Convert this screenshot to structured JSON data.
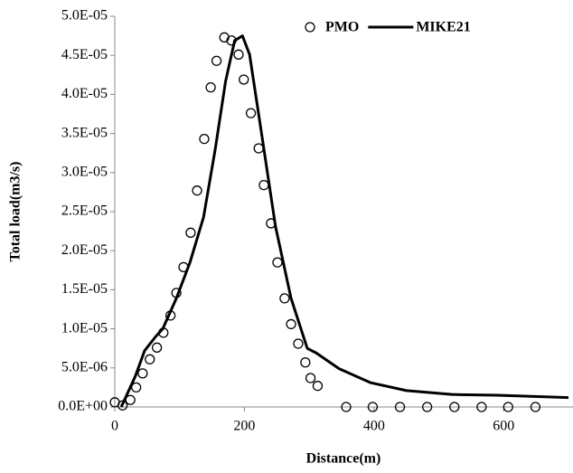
{
  "chart_data": {
    "type": "scatter",
    "xlabel": "Distance(m)",
    "ylabel": "Total load(m3/s)",
    "xlim": [
      0,
      700
    ],
    "xticks": [
      0,
      200,
      400,
      600
    ],
    "ylim": [
      0,
      5e-05
    ],
    "yticks": [
      {
        "value": 0,
        "label": "0.0E+00"
      },
      {
        "value": 5e-06,
        "label": "5.0E-06"
      },
      {
        "value": 1e-05,
        "label": "1.0E-05"
      },
      {
        "value": 1.5e-05,
        "label": "1.5E-05"
      },
      {
        "value": 2e-05,
        "label": "2.0E-05"
      },
      {
        "value": 2.5e-05,
        "label": "2.5E-05"
      },
      {
        "value": 3e-05,
        "label": "3.0E-05"
      },
      {
        "value": 3.5e-05,
        "label": "3.5E-05"
      },
      {
        "value": 4e-05,
        "label": "4.0E-05"
      },
      {
        "value": 4.5e-05,
        "label": "4.5E-05"
      },
      {
        "value": 5e-05,
        "label": "5.0E-05"
      }
    ],
    "grid": false,
    "legend": "top-right",
    "series": [
      {
        "name": "PMO",
        "type": "scatter",
        "color": "#000000",
        "x": [
          0,
          12,
          24,
          33,
          43,
          54,
          65,
          75,
          86,
          95,
          106,
          117,
          127,
          138,
          148,
          157,
          169,
          180,
          191,
          199,
          210,
          222,
          230,
          241,
          251,
          262,
          272,
          283,
          294,
          302,
          313,
          357,
          398,
          440,
          482,
          524,
          566,
          607,
          649
        ],
        "values": [
          6e-07,
          2e-07,
          9e-07,
          2.5e-06,
          4.3e-06,
          6.1e-06,
          7.6e-06,
          9.5e-06,
          1.17e-05,
          1.46e-05,
          1.79e-05,
          2.23e-05,
          2.77e-05,
          3.43e-05,
          4.09e-05,
          4.43e-05,
          4.73e-05,
          4.69e-05,
          4.51e-05,
          4.19e-05,
          3.76e-05,
          3.31e-05,
          2.84e-05,
          2.35e-05,
          1.85e-05,
          1.39e-05,
          1.06e-05,
          8.1e-06,
          5.7e-06,
          3.7e-06,
          2.7e-06,
          0,
          0,
          0,
          0,
          0,
          0,
          0,
          0
        ]
      },
      {
        "name": "MIKE21",
        "type": "line",
        "color": "#000000",
        "x": [
          10,
          32,
          46,
          63,
          74,
          95,
          116,
          137,
          155,
          171,
          185,
          197,
          208,
          227,
          248,
          272,
          297,
          311,
          346,
          395,
          450,
          520,
          590,
          700
        ],
        "values": [
          0,
          4e-06,
          7.2e-06,
          9e-06,
          1e-05,
          1.39e-05,
          1.85e-05,
          2.43e-05,
          3.3e-05,
          4.17e-05,
          4.69e-05,
          4.75e-05,
          4.51e-05,
          3.47e-05,
          2.31e-05,
          1.39e-05,
          7.5e-06,
          6.9e-06,
          4.9e-06,
          3.1e-06,
          2.1e-06,
          1.6e-06,
          1.5e-06,
          1.2e-06
        ]
      }
    ]
  }
}
